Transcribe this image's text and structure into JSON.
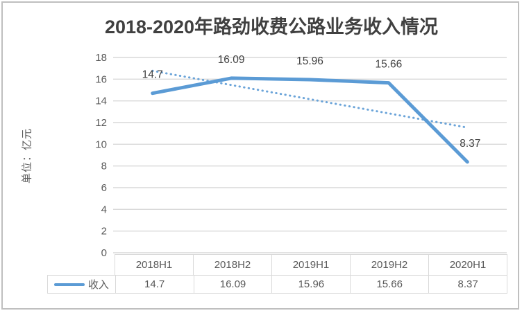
{
  "title": "2018-2020年路劲收费公路业务收入情况",
  "y_axis": {
    "title": "单位：亿元"
  },
  "chart_data": {
    "type": "line",
    "title": "2018-2020年路劲收费公路业务收入情况",
    "ylabel": "单位：亿元",
    "categories": [
      "2018H1",
      "2018H2",
      "2019H1",
      "2019H2",
      "2020H1"
    ],
    "series": [
      {
        "name": "收入",
        "values": [
          14.7,
          16.09,
          15.96,
          15.66,
          8.37
        ],
        "labels": [
          "14.7",
          "16.09",
          "15.96",
          "15.66",
          "8.37"
        ],
        "color": "#5b9bd5"
      }
    ],
    "trendline": {
      "type": "linear",
      "style": "dotted",
      "color": "#5b9bd5",
      "start_value": 16.77,
      "end_value": 11.54
    },
    "ylim": [
      0,
      18
    ],
    "y_tick_step": 2,
    "grid": true,
    "legend_position": "data-table"
  },
  "table": {
    "legend": {
      "series_name": "收入",
      "swatch_color": "#5b9bd5"
    },
    "header": [
      "2018H1",
      "2018H2",
      "2019H1",
      "2019H2",
      "2020H1"
    ],
    "rows": [
      {
        "label": "收入",
        "values": [
          "14.7",
          "16.09",
          "15.96",
          "15.66",
          "8.37"
        ]
      }
    ]
  },
  "colors": {
    "series": "#5b9bd5",
    "grid": "#d9d9d9",
    "title_text": "#404040",
    "data_label_text": "#404040",
    "axis_text": "#595959",
    "table_border": "#d9d9d9",
    "frame_border": "#bfbfbf"
  }
}
